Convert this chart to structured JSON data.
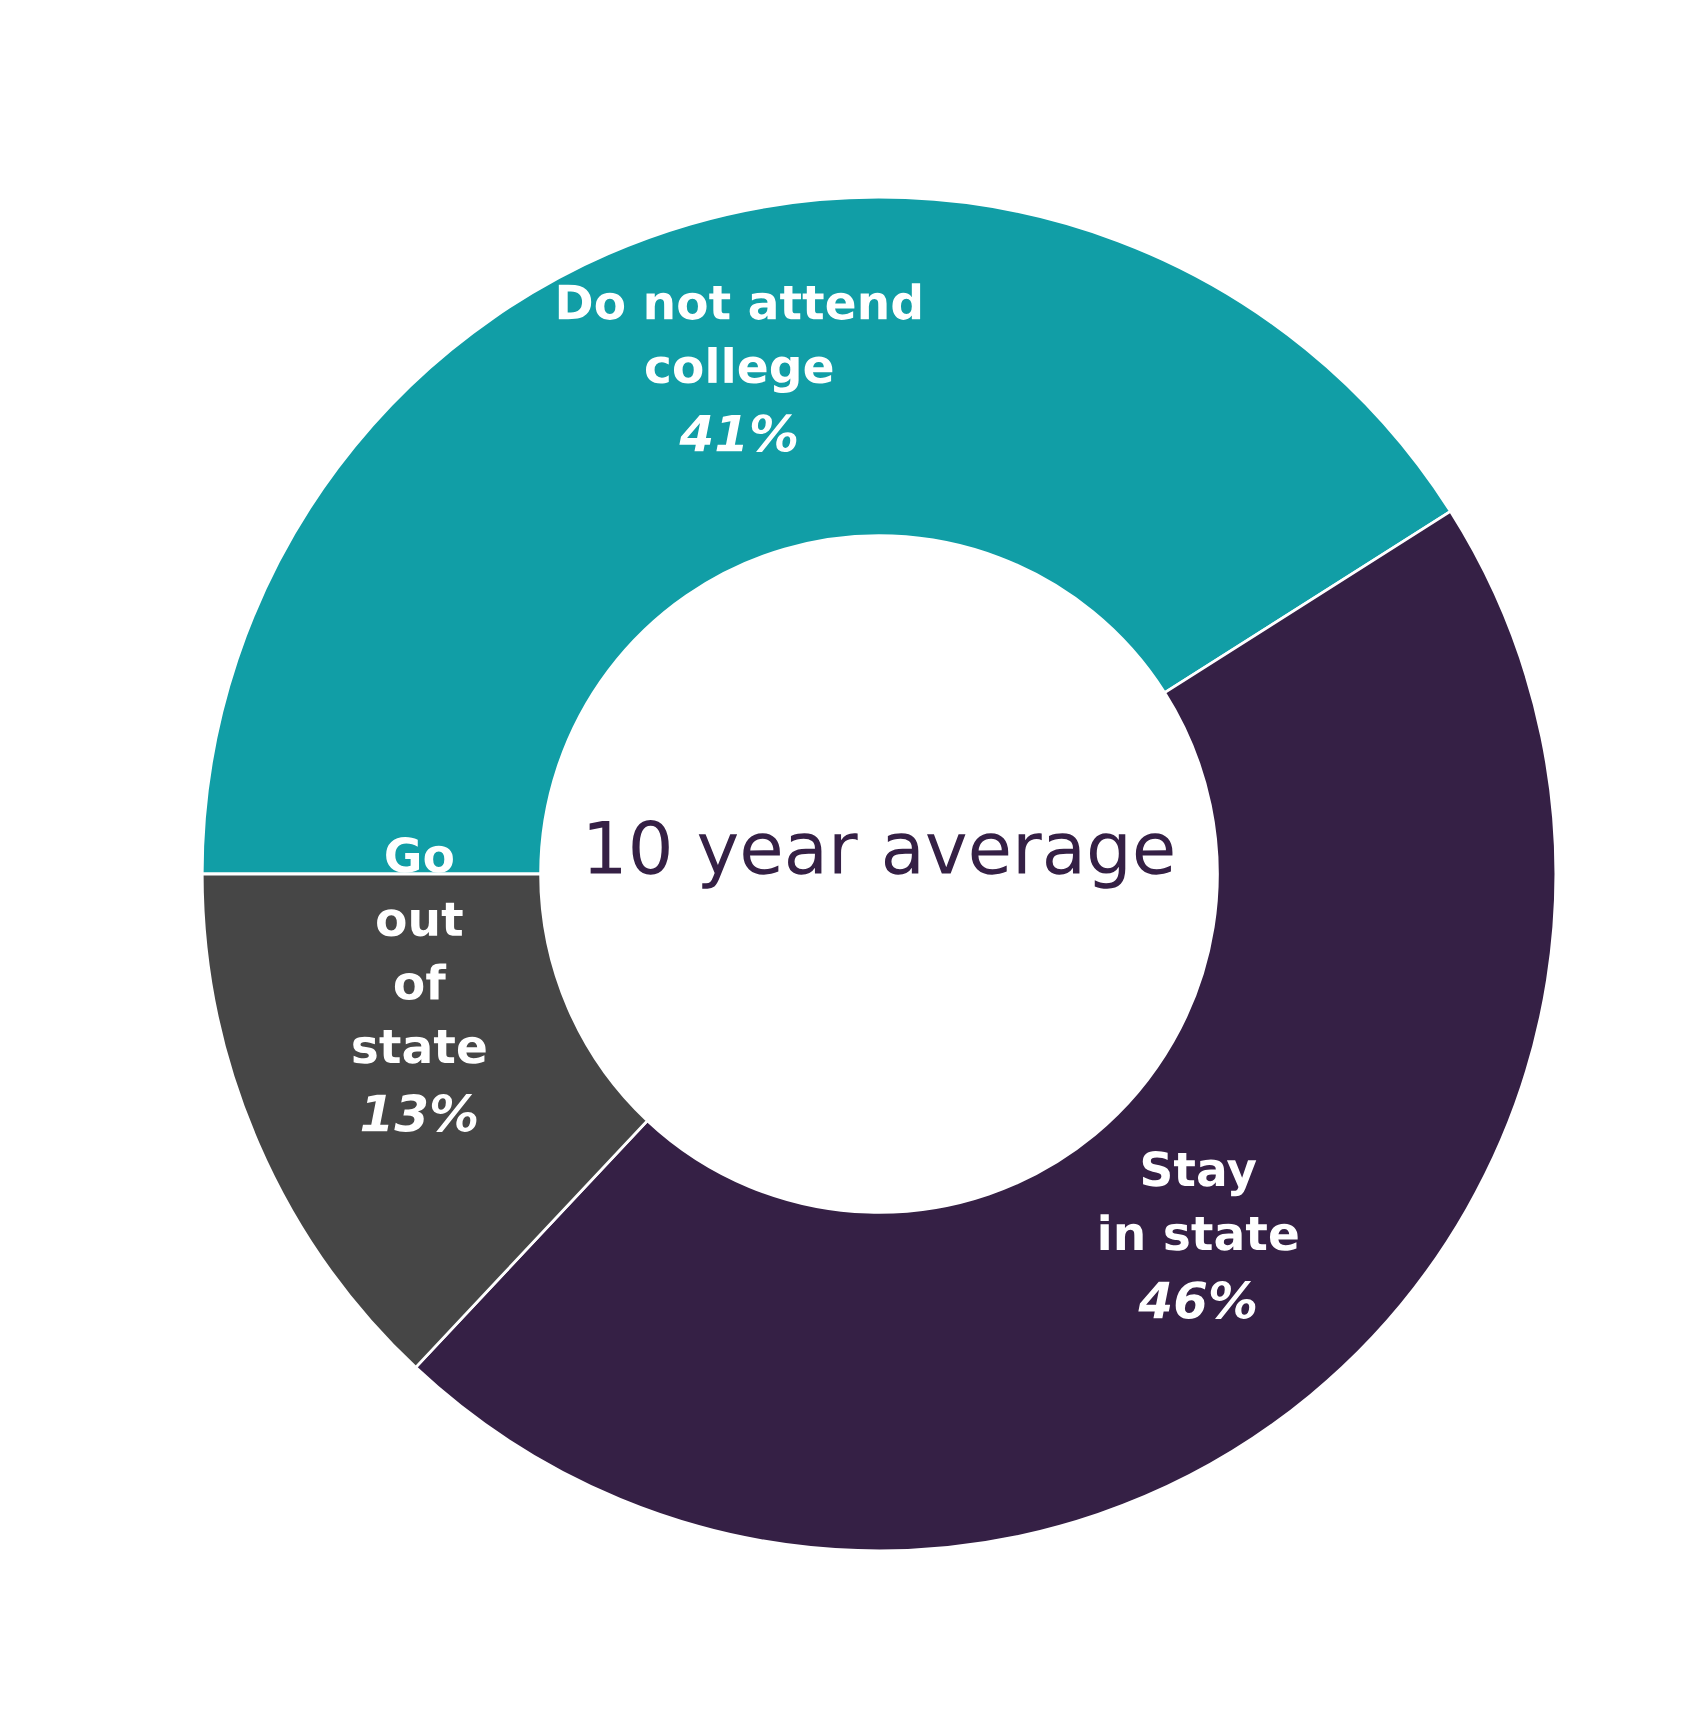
{
  "chart_data": {
    "type": "donut",
    "categories": [
      "Do not attend\ncollege",
      "Stay\nin state",
      "Go\nout\nof\nstate"
    ],
    "values": [
      41,
      46,
      13
    ],
    "value_labels": [
      "41%",
      "46%",
      "13%"
    ],
    "colors": [
      "#119ea6",
      "#352045",
      "#464646"
    ],
    "annotations": [
      "10 year average"
    ],
    "legend": false
  }
}
